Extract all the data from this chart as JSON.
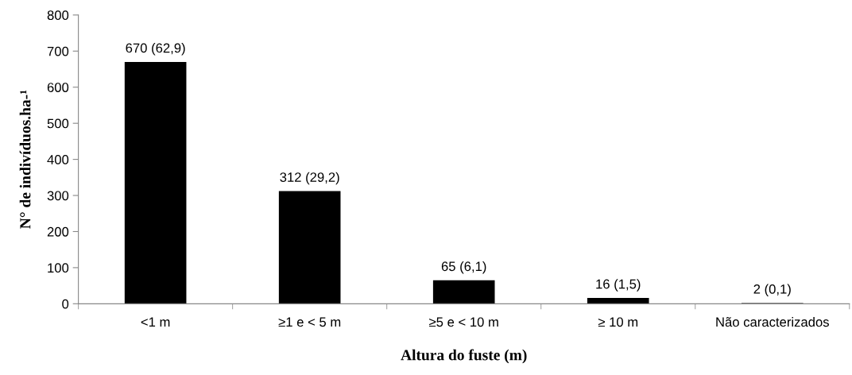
{
  "chart_data": {
    "type": "bar",
    "xlabel": "Altura do fuste (m)",
    "ylabel": "N° de indivíduos.ha-¹",
    "categories": [
      "<1 m",
      "≥1 e < 5 m",
      "≥5 e < 10 m",
      "≥ 10 m",
      "Não caracterizados"
    ],
    "values": [
      670,
      312,
      65,
      16,
      2
    ],
    "color": "#000000",
    "value_labels": [
      "670 (62,9)",
      "312 (29,2)",
      "65 (6,1)",
      "16 (1,5)",
      "2 (0,1)"
    ],
    "ylim": [
      0,
      800
    ],
    "yticks": [
      0,
      100,
      200,
      300,
      400,
      500,
      600,
      700,
      800
    ],
    "grid": false,
    "legend": false
  }
}
